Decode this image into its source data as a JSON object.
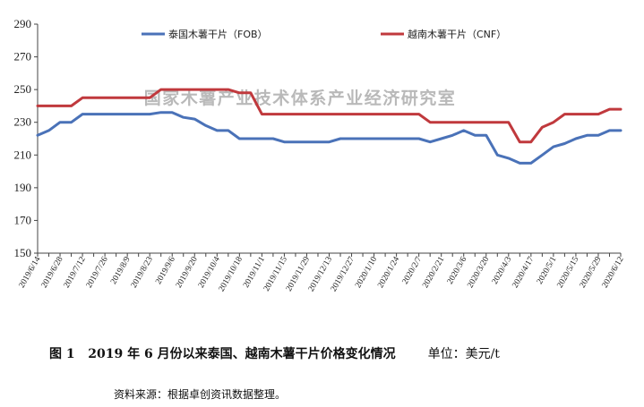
{
  "chart_data": {
    "type": "line",
    "x": [
      "2019/6/14",
      "2019/6/21",
      "2019/6/28",
      "2019/7/5",
      "2019/7/12",
      "2019/7/19",
      "2019/7/26",
      "2019/8/2",
      "2019/8/9",
      "2019/8/16",
      "2019/8/23",
      "2019/8/30",
      "2019/9/6",
      "2019/9/13",
      "2019/9/20",
      "2019/9/27",
      "2019/10/4",
      "2019/10/11",
      "2019/10/18",
      "2019/10/25",
      "2019/11/1",
      "2019/11/8",
      "2019/11/15",
      "2019/11/22",
      "2019/11/29",
      "2019/12/6",
      "2019/12/13",
      "2019/12/20",
      "2019/12/27",
      "2020/1/3",
      "2020/1/10",
      "2020/1/17",
      "2020/1/24",
      "2020/1/31",
      "2020/2/7",
      "2020/2/14",
      "2020/2/21",
      "2020/2/28",
      "2020/3/6",
      "2020/3/13",
      "2020/3/20",
      "2020/3/27",
      "2020/4/3",
      "2020/4/10",
      "2020/4/17",
      "2020/4/24",
      "2020/5/1",
      "2020/5/8",
      "2020/5/15",
      "2020/5/22",
      "2020/5/29",
      "2020/6/5",
      "2020/6/12"
    ],
    "x_tick_labels": [
      "2019/6/14",
      "2019/6/28",
      "2019/7/12",
      "2019/7/26",
      "2019/8/9",
      "2019/8/23",
      "2019/9/6",
      "2019/9/20",
      "2019/10/4",
      "2019/10/18",
      "2019/11/1",
      "2019/11/15",
      "2019/11/29",
      "2019/12/13",
      "2019/12/27",
      "2020/1/10",
      "2020/1/24",
      "2020/2/7",
      "2020/2/21",
      "2020/3/6",
      "2020/3/20",
      "2020/4/3",
      "2020/4/17",
      "2020/5/1",
      "2020/5/15",
      "2020/5/29",
      "2020/6/12"
    ],
    "series": [
      {
        "name": "泰国木薯干片（FOB）",
        "color": "#4a72b8",
        "values": [
          222,
          225,
          230,
          230,
          235,
          235,
          235,
          235,
          235,
          235,
          235,
          236,
          236,
          233,
          232,
          228,
          225,
          225,
          220,
          220,
          220,
          220,
          218,
          218,
          218,
          218,
          218,
          220,
          220,
          220,
          220,
          220,
          220,
          220,
          220,
          218,
          220,
          222,
          225,
          222,
          222,
          210,
          208,
          205,
          205,
          210,
          215,
          217,
          220,
          222,
          222,
          225,
          225
        ]
      },
      {
        "name": "越南木薯干片（CNF）",
        "color": "#c0393d",
        "values": [
          240,
          240,
          240,
          240,
          245,
          245,
          245,
          245,
          245,
          245,
          245,
          250,
          250,
          250,
          250,
          250,
          250,
          250,
          248,
          248,
          235,
          235,
          235,
          235,
          235,
          235,
          235,
          235,
          235,
          235,
          235,
          235,
          235,
          235,
          235,
          230,
          230,
          230,
          230,
          230,
          230,
          230,
          230,
          218,
          218,
          227,
          230,
          235,
          235,
          235,
          235,
          238,
          238
        ]
      }
    ],
    "y_ticks": [
      150,
      170,
      190,
      210,
      230,
      250,
      270,
      290
    ],
    "ylim": [
      150,
      290
    ],
    "grid": false,
    "legend_position": "top",
    "watermark": "国家木薯产业技术体系产业经济研究室"
  },
  "caption": {
    "figure_label": "图 1",
    "title": "2019 年 6 月份以来泰国、越南木薯干片价格变化情况",
    "unit": "单位：美元/t"
  },
  "source_note": "资料来源：根据卓创资讯数据整理。"
}
